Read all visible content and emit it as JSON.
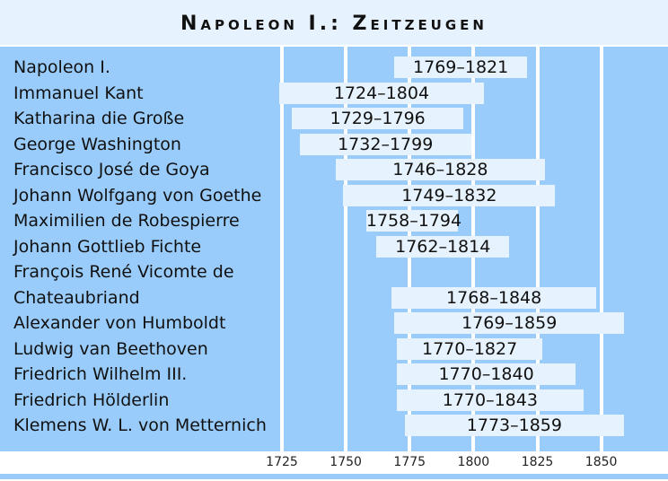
{
  "title": "Napoleon I.: Zeitzeugen",
  "colors": {
    "background_band": "#e6f2fd",
    "chart_bg": "#99ccfb",
    "bar": "#e6f2fd",
    "grid": "#ffffff"
  },
  "chart_data": {
    "type": "bar",
    "orientation": "horizontal-range",
    "title": "Napoleon I.: Zeitzeugen",
    "xlabel": "",
    "ylabel": "",
    "xlim": [
      1713,
      1874
    ],
    "xticks": [
      1725,
      1750,
      1775,
      1800,
      1825,
      1850
    ],
    "grid": true,
    "rows": [
      {
        "name": "Napoleon I.",
        "start": 1769,
        "end": 1821,
        "label": "1769–1821"
      },
      {
        "name": "Immanuel Kant",
        "start": 1724,
        "end": 1804,
        "label": "1724–1804"
      },
      {
        "name": "Katharina die Große",
        "start": 1729,
        "end": 1796,
        "label": "1729–1796"
      },
      {
        "name": "George Washington",
        "start": 1732,
        "end": 1799,
        "label": "1732–1799"
      },
      {
        "name": "Francisco José de Goya",
        "start": 1746,
        "end": 1828,
        "label": "1746–1828"
      },
      {
        "name": "Johann Wolfgang von Goethe",
        "start": 1749,
        "end": 1832,
        "label": "1749–1832"
      },
      {
        "name": "Maximilien de Robespierre",
        "start": 1758,
        "end": 1794,
        "label": "1758–1794"
      },
      {
        "name": "Johann Gottlieb Fichte",
        "start": 1762,
        "end": 1814,
        "label": "1762–1814"
      },
      {
        "name": "François René Vicomte de Chateaubriand",
        "start": 1768,
        "end": 1848,
        "label": "1768–1848"
      },
      {
        "name": "Alexander von Humboldt",
        "start": 1769,
        "end": 1859,
        "label": "1769–1859"
      },
      {
        "name": "Ludwig van Beethoven",
        "start": 1770,
        "end": 1827,
        "label": "1770–1827"
      },
      {
        "name": "Friedrich Wilhelm III.",
        "start": 1770,
        "end": 1840,
        "label": "1770–1840"
      },
      {
        "name": "Friedrich Hölderlin",
        "start": 1770,
        "end": 1843,
        "label": "1770–1843"
      },
      {
        "name": "Klemens W. L. von Metternich",
        "start": 1773,
        "end": 1859,
        "label": "1773–1859"
      }
    ]
  },
  "names": [
    {
      "text": "Napoleon I.",
      "row": 0
    },
    {
      "text": "Immanuel Kant",
      "row": 1
    },
    {
      "text": "Katharina die Große",
      "row": 2
    },
    {
      "text": "George Washington",
      "row": 3
    },
    {
      "text": "Francisco José de Goya",
      "row": 4
    },
    {
      "text": "Johann Wolfgang von Goethe",
      "row": 5
    },
    {
      "text": "Maximilien de Robespierre",
      "row": 6
    },
    {
      "text": "Johann Gottlieb Fichte",
      "row": 7
    },
    {
      "text": "François René Vicomte de",
      "row": 8
    },
    {
      "text": "Chateaubriand",
      "row": 9
    },
    {
      "text": "Alexander von Humboldt",
      "row": 10
    },
    {
      "text": "Ludwig van Beethoven",
      "row": 11
    },
    {
      "text": "Friedrich Wilhelm III.",
      "row": 12
    },
    {
      "text": "Friedrich Hölderlin",
      "row": 13
    },
    {
      "text": "Klemens W. L. von Metternich",
      "row": 14
    }
  ],
  "bar_rows": [
    0,
    1,
    2,
    3,
    4,
    5,
    6,
    7,
    9,
    10,
    11,
    12,
    13,
    14
  ],
  "axis_ticks": [
    "1725",
    "1750",
    "1775",
    "1800",
    "1825",
    "1850"
  ]
}
